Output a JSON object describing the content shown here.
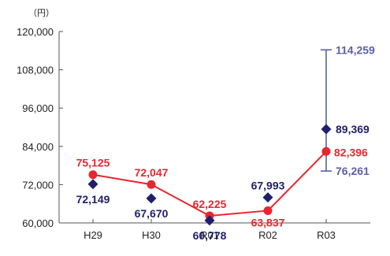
{
  "chart_data": {
    "type": "line",
    "title": "",
    "unit_label": "（円）",
    "xlabel": "",
    "ylabel": "",
    "categories": [
      "H29",
      "H30",
      "R01",
      "R02",
      "R03"
    ],
    "ylim": [
      60000,
      120000
    ],
    "yticks": [
      60000,
      72000,
      84000,
      96000,
      108000,
      120000
    ],
    "ytick_labels": [
      "60,000",
      "72,000",
      "84,000",
      "96,000",
      "108,000",
      "120,000"
    ],
    "grid": false,
    "legend": "none",
    "series": [
      {
        "style": "line-circle",
        "color": "#e8262e",
        "values": [
          75125,
          72047,
          62225,
          63837,
          82396
        ],
        "labels": [
          "75,125",
          "72,047",
          "62,225",
          "63,837",
          "82,396"
        ]
      },
      {
        "style": "diamond",
        "color": "#1f1f6e",
        "values": [
          72149,
          67670,
          60778,
          67993,
          89369
        ],
        "labels": [
          "72,149",
          "67,670",
          "60,778",
          "67,993",
          "89,369"
        ]
      }
    ],
    "range_bar": {
      "category": "R03",
      "high": 114259,
      "low": 76261,
      "high_label": "114,259",
      "low_label": "76,261",
      "color": "#5b5fa8"
    }
  }
}
